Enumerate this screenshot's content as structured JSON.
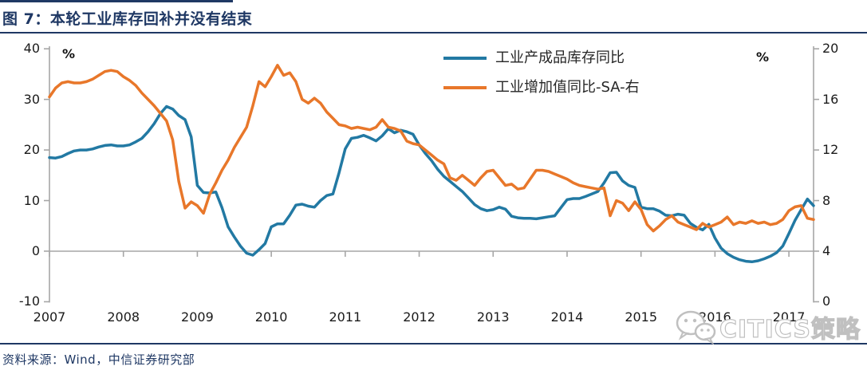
{
  "figure": {
    "title": "图 7：本轮工业库存回补并没有结束",
    "source_note": "资料来源：Wind，中信证券研究部",
    "watermark_text": "CITICS策略",
    "left_unit_label": "%",
    "right_unit_label": "%"
  },
  "colors": {
    "navy": "#1F3864",
    "axis_gray": "#A6A6A6",
    "tick_text": "#1A1A1A",
    "series_inventory_blue": "#2279A3",
    "series_iva_orange": "#E8772A",
    "watermark_gray": "#BDBDBD"
  },
  "chart_data": {
    "type": "line",
    "title": "本轮工业库存回补并没有结束",
    "x_unit": "month",
    "x_range": [
      "2007-01",
      "2017-05"
    ],
    "x_tick_labels": [
      "2007",
      "2008",
      "2009",
      "2010",
      "2011",
      "2012",
      "2013",
      "2014",
      "2015",
      "2016",
      "2017"
    ],
    "left_axis": {
      "unit": "%",
      "min": -10,
      "max": 40,
      "ticks": [
        40,
        30,
        20,
        10,
        0,
        -10
      ]
    },
    "right_axis": {
      "unit": "%",
      "min": 0,
      "max": 20,
      "ticks": [
        20,
        16,
        12,
        8,
        4,
        0
      ]
    },
    "grid": false,
    "legend_position": "top-center",
    "series": [
      {
        "name": "工业产成品库存同比",
        "axis": "left",
        "color": "#2279A3",
        "values": [
          18.5,
          18.4,
          18.7,
          19.3,
          19.8,
          20.0,
          20.0,
          20.2,
          20.6,
          20.9,
          21.0,
          20.8,
          20.8,
          21.0,
          21.6,
          22.3,
          23.6,
          25.2,
          27.2,
          28.6,
          28.1,
          26.8,
          26.0,
          22.6,
          13.0,
          11.6,
          11.5,
          11.7,
          8.6,
          4.8,
          2.8,
          1.0,
          -0.4,
          -0.8,
          0.3,
          1.5,
          4.8,
          5.4,
          5.4,
          7.1,
          9.1,
          9.3,
          8.9,
          8.7,
          10.0,
          11.0,
          11.3,
          15.5,
          20.2,
          22.3,
          22.5,
          22.9,
          22.4,
          21.8,
          22.8,
          24.2,
          23.4,
          23.9,
          23.6,
          23.1,
          21.0,
          19.3,
          17.9,
          16.2,
          14.8,
          13.8,
          12.8,
          11.8,
          10.5,
          9.2,
          8.4,
          8.0,
          8.2,
          8.7,
          8.3,
          6.9,
          6.6,
          6.5,
          6.5,
          6.4,
          6.6,
          6.8,
          7.0,
          8.6,
          10.2,
          10.4,
          10.4,
          10.8,
          11.3,
          11.8,
          13.5,
          15.5,
          15.6,
          13.9,
          13.0,
          12.6,
          8.7,
          8.4,
          8.4,
          7.9,
          7.1,
          7.0,
          7.3,
          7.1,
          5.5,
          4.7,
          4.2,
          5.3,
          2.6,
          0.6,
          -0.5,
          -1.2,
          -1.7,
          -2.0,
          -2.1,
          -1.9,
          -1.5,
          -1.0,
          -0.3,
          1.0,
          3.5,
          6.1,
          8.2,
          10.3,
          9.0
        ]
      },
      {
        "name": "工业增加值同比-SA-右",
        "axis": "right",
        "color": "#E8772A",
        "values": [
          16.2,
          16.9,
          17.3,
          17.4,
          17.3,
          17.3,
          17.4,
          17.6,
          17.9,
          18.2,
          18.3,
          18.2,
          17.8,
          17.5,
          17.1,
          16.5,
          16.0,
          15.5,
          14.9,
          14.3,
          12.8,
          9.5,
          7.4,
          7.9,
          7.6,
          7.0,
          8.5,
          9.4,
          10.4,
          11.2,
          12.2,
          13.0,
          13.8,
          15.5,
          17.4,
          17.0,
          17.8,
          18.7,
          17.9,
          18.1,
          17.4,
          16.0,
          15.7,
          16.1,
          15.7,
          15.0,
          14.5,
          14.0,
          13.9,
          13.7,
          13.8,
          13.7,
          13.6,
          13.8,
          14.4,
          13.8,
          13.7,
          13.5,
          12.7,
          12.5,
          12.4,
          12.0,
          11.6,
          11.2,
          10.9,
          9.8,
          9.6,
          10.0,
          9.6,
          9.2,
          9.8,
          10.3,
          10.4,
          9.8,
          9.2,
          9.3,
          8.9,
          9.0,
          9.7,
          10.4,
          10.4,
          10.3,
          10.1,
          9.9,
          9.7,
          9.4,
          9.2,
          9.1,
          9.0,
          8.9,
          9.0,
          6.8,
          8.0,
          7.8,
          7.2,
          7.9,
          7.3,
          6.1,
          5.6,
          6.0,
          6.5,
          6.8,
          6.3,
          6.1,
          5.9,
          5.7,
          6.2,
          5.9,
          6.1,
          6.3,
          6.7,
          6.1,
          6.3,
          6.2,
          6.4,
          6.2,
          6.3,
          6.1,
          6.2,
          6.5,
          7.2,
          7.5,
          7.6,
          6.6,
          6.5
        ]
      }
    ]
  }
}
